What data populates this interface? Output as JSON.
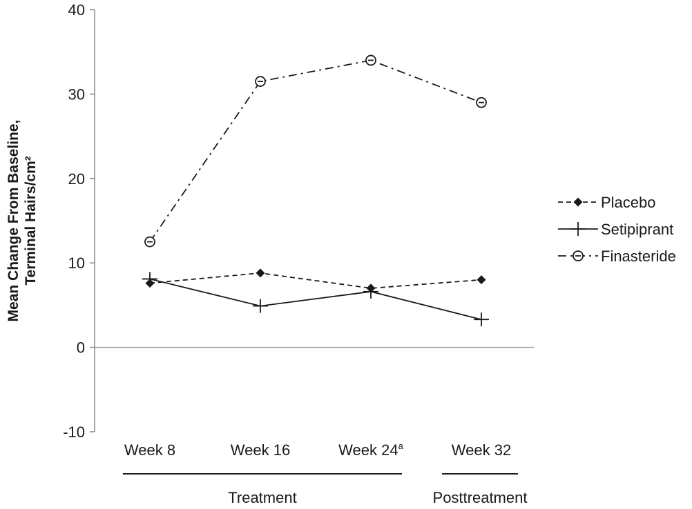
{
  "chart_data": {
    "type": "line",
    "categories": [
      "Week 8",
      "Week 16",
      "Week 24",
      "Week 32"
    ],
    "category_superscripts": [
      "",
      "",
      "a",
      ""
    ],
    "ylabel": [
      "Mean Change From Baseline,",
      "Terminal Hairs/cm²"
    ],
    "ylim": [
      -10,
      40
    ],
    "yticks": [
      -10,
      0,
      10,
      20,
      30,
      40
    ],
    "legend_placement": "right",
    "groups": [
      {
        "label": "Treatment",
        "categories": [
          "Week 8",
          "Week 16",
          "Week 24"
        ]
      },
      {
        "label": "Posttreatment",
        "categories": [
          "Week 32"
        ]
      }
    ],
    "series": [
      {
        "name": "Placebo",
        "values": [
          7.6,
          8.8,
          7.0,
          8.0
        ],
        "marker": "diamond",
        "dash": "dashed",
        "color": "#1a1a1a"
      },
      {
        "name": "Setipiprant",
        "values": [
          8.1,
          4.9,
          6.6,
          3.3
        ],
        "marker": "plus",
        "dash": "solid",
        "color": "#1a1a1a"
      },
      {
        "name": "Finasteride",
        "values": [
          12.5,
          31.5,
          34.0,
          29.0
        ],
        "marker": "circle-dot",
        "dash": "dashdot",
        "color": "#1a1a1a"
      }
    ]
  }
}
